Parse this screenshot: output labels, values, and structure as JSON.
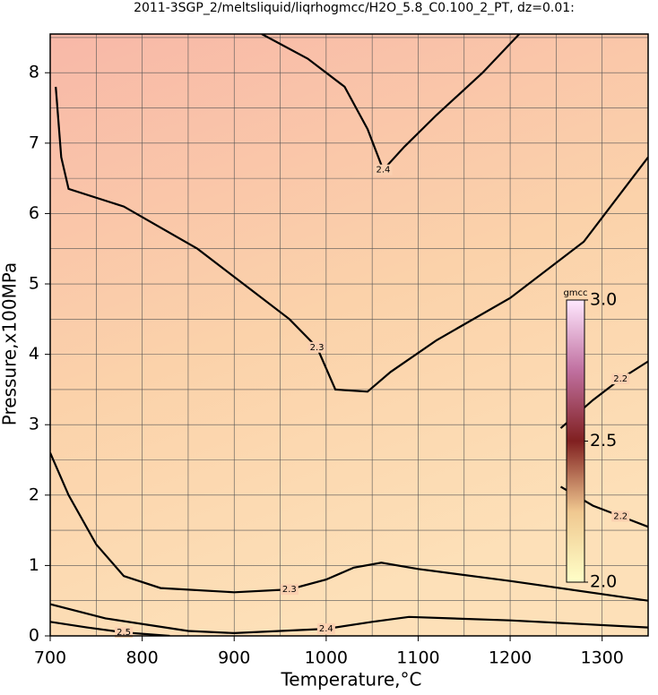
{
  "chart_data": {
    "type": "contour",
    "title": "2011-3SGP_2/meltsliquid/liqrhogmcc/H2O_5.8_C0.100_2_PT, dz=0.01:",
    "xlabel": "Temperature,°C",
    "ylabel": "Pressure,x100MPa",
    "xlim": [
      700,
      1350
    ],
    "ylim": [
      0,
      8.55
    ],
    "xticks": [
      700,
      800,
      900,
      1000,
      1100,
      1200,
      1300
    ],
    "yticks": [
      0,
      1,
      2,
      3,
      4,
      5,
      6,
      7,
      8
    ],
    "grid": true,
    "xgrid": [
      700,
      750,
      800,
      850,
      900,
      950,
      1000,
      1050,
      1100,
      1150,
      1200,
      1250,
      1300,
      1350
    ],
    "ygrid": [
      0,
      0.5,
      1,
      1.5,
      2,
      2.5,
      3,
      3.5,
      4,
      4.5,
      5,
      5.5,
      6,
      6.5,
      7,
      7.5,
      8,
      8.5
    ],
    "contours": [
      {
        "level": 2.4,
        "x": [
          930,
          980,
          1020,
          1045,
          1062,
          1085,
          1120,
          1170,
          1210
        ],
        "y": [
          8.55,
          8.2,
          7.8,
          7.2,
          6.62,
          6.95,
          7.4,
          8.0,
          8.55
        ]
      },
      {
        "level": 2.3,
        "x": [
          706,
          712,
          720,
          780,
          860,
          920,
          960,
          990,
          1010,
          1045,
          1070,
          1120,
          1200,
          1280,
          1350
        ],
        "y": [
          7.8,
          6.8,
          6.35,
          6.1,
          5.5,
          4.9,
          4.5,
          4.1,
          3.5,
          3.47,
          3.75,
          4.2,
          4.8,
          5.6,
          6.8
        ]
      },
      {
        "level": 2.2,
        "x": [
          1255,
          1290,
          1320,
          1350
        ],
        "y": [
          2.12,
          1.85,
          1.7,
          1.55
        ]
      },
      {
        "level": 2.2,
        "x": [
          1255,
          1290,
          1320,
          1350
        ],
        "y": [
          2.95,
          3.35,
          3.65,
          3.9
        ]
      },
      {
        "level": 2.3,
        "x": [
          700,
          720,
          750,
          780,
          820,
          900,
          960,
          1000,
          1030,
          1060,
          1100,
          1200,
          1350
        ],
        "y": [
          2.6,
          2.0,
          1.3,
          0.85,
          0.68,
          0.62,
          0.66,
          0.8,
          0.97,
          1.04,
          0.95,
          0.78,
          0.5
        ]
      },
      {
        "level": 2.4,
        "x": [
          700,
          760,
          850,
          900,
          1000,
          1050,
          1090,
          1200,
          1350
        ],
        "y": [
          0.45,
          0.25,
          0.07,
          0.04,
          0.1,
          0.2,
          0.27,
          0.22,
          0.12
        ]
      },
      {
        "level": 2.5,
        "x": [
          700,
          740,
          780,
          830
        ],
        "y": [
          0.2,
          0.12,
          0.05,
          0.0
        ]
      }
    ],
    "colorbar": {
      "label": "gmcc",
      "clim": [
        2,
        3
      ],
      "ticks": [
        {
          "value": 3,
          "label": "3.0"
        },
        2.5,
        {
          "value": 2,
          "label": "2.0"
        }
      ]
    }
  }
}
